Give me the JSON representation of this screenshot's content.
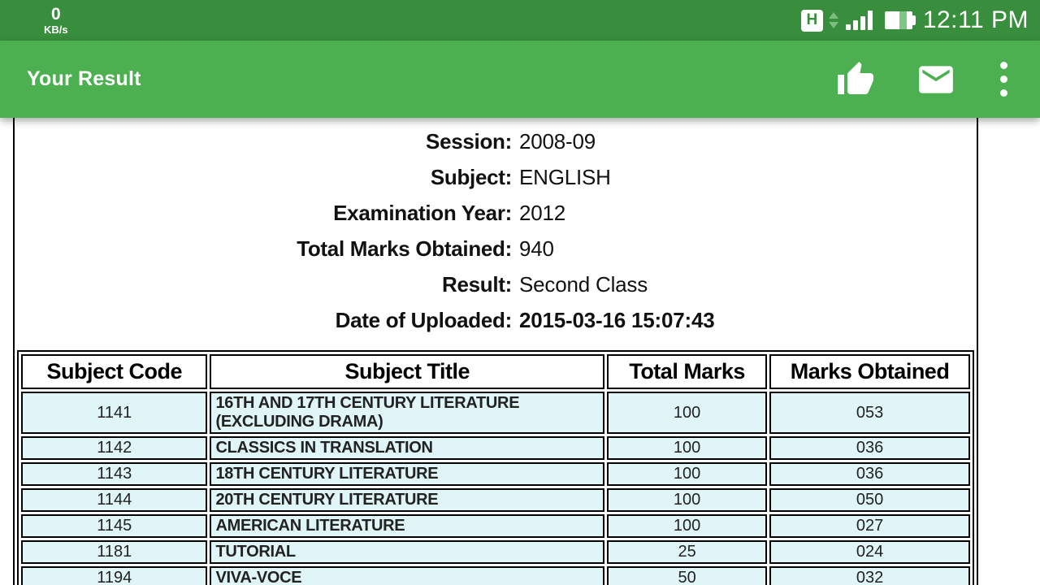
{
  "status_bar": {
    "net_speed_value": "0",
    "net_speed_unit": "KB/s",
    "network_type": "H",
    "time": "12:11 PM",
    "icons": [
      "network-type-h",
      "updown-arrows",
      "signal-bars",
      "battery"
    ]
  },
  "app_bar": {
    "title": "Your Result",
    "actions": [
      "thumbs-up",
      "email",
      "more-vert"
    ]
  },
  "result_info": {
    "rows": [
      {
        "label": "Session:",
        "value": "2008-09",
        "value_bold": false
      },
      {
        "label": "Subject:",
        "value": "ENGLISH",
        "value_bold": false
      },
      {
        "label": "Examination Year:",
        "value": "2012",
        "value_bold": false
      },
      {
        "label": "Total Marks Obtained:",
        "value": "940",
        "value_bold": false
      },
      {
        "label": "Result:",
        "value": "Second Class",
        "value_bold": false
      },
      {
        "label": "Date of Uploaded:",
        "value": "2015-03-16 15:07:43",
        "value_bold": true
      }
    ]
  },
  "marks_table": {
    "headers": [
      "Subject Code",
      "Subject Title",
      "Total Marks",
      "Marks Obtained"
    ],
    "col_widths": [
      "19.8%",
      "41.9%",
      "17.0%",
      "21.3%"
    ],
    "rows": [
      {
        "code": "1141",
        "title": "16TH AND 17TH CENTURY LITERATURE (EXCLUDING DRAMA)",
        "total": "100",
        "obtained": "053"
      },
      {
        "code": "1142",
        "title": "CLASSICS IN TRANSLATION",
        "total": "100",
        "obtained": "036"
      },
      {
        "code": "1143",
        "title": "18TH CENTURY LITERATURE",
        "total": "100",
        "obtained": "036"
      },
      {
        "code": "1144",
        "title": "20TH CENTURY LITERATURE",
        "total": "100",
        "obtained": "050"
      },
      {
        "code": "1145",
        "title": "AMERICAN LITERATURE",
        "total": "100",
        "obtained": "027"
      },
      {
        "code": "1181",
        "title": "TUTORIAL",
        "total": "25",
        "obtained": "024"
      },
      {
        "code": "1194",
        "title": "VIVA-VOCE",
        "total": "50",
        "obtained": "032"
      }
    ]
  },
  "colors": {
    "status_bar_bg": "#388e3c",
    "app_bar_bg": "#4caf50",
    "table_row_bg": "#dff5f7",
    "border": "#000000",
    "battery_level": "#81c784",
    "arrow_green": "#7cbd80"
  }
}
